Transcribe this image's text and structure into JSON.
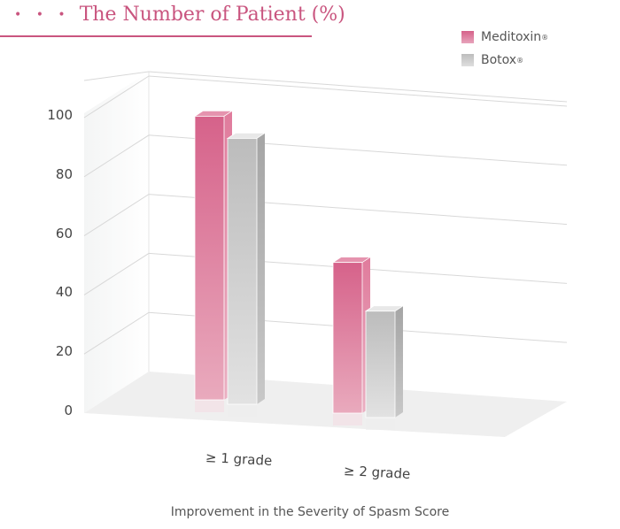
{
  "title": "The Number of Patient (%)",
  "title_prefix": "• • •",
  "chart_data": {
    "type": "bar",
    "style": "3d",
    "title": "The Number of Patient (%)",
    "xlabel": "Improvement in the Severity of Spasm Score",
    "ylabel": "",
    "categories": [
      "≥ 1 grade",
      "≥ 2 grade"
    ],
    "series": [
      {
        "name": "Meditoxin",
        "values": [
          96,
          51
        ],
        "color": "#d6628a"
      },
      {
        "name": "Botox",
        "values": [
          90,
          36
        ],
        "color": "#c4c4c4"
      }
    ],
    "ylim": [
      0,
      100
    ],
    "yticks": [
      "0",
      "20",
      "40",
      "60",
      "80",
      "100"
    ],
    "grid": true,
    "legend": "top-right",
    "legend_mark": "®"
  }
}
